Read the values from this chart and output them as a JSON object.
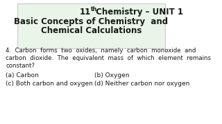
{
  "title_line1": "11",
  "title_th": "th",
  "title_line1_rest": " Chemistry – UNIT 1",
  "title_line2": "Basic Concepts of Chemistry  and",
  "title_line3": "Chemical Calculations",
  "header_bg": "#e8f5e8",
  "bg_color": "#ffffff",
  "question": "4.  Carbon  forms  two  oxides,  namely  carbon  monoxide  and\ncarbon  dioxide.  The  equivalent  mass  of  which  element  remains\nconstant?",
  "opt_a": "(a) Carbon",
  "opt_b": "(b) Oxygen",
  "opt_c": "(c) Both carbon and oxygen",
  "opt_d": "(d) Neither carbon nor oxygen",
  "text_color": "#1a1a1a",
  "border_color": "#cccccc"
}
